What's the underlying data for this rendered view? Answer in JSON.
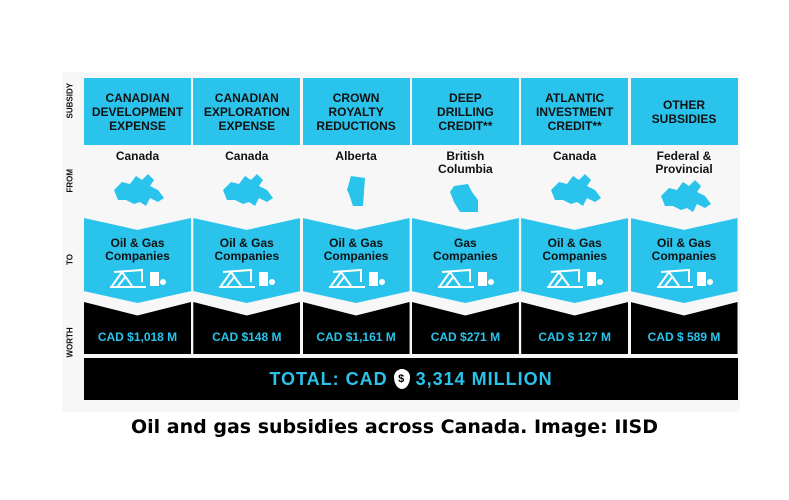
{
  "row_labels": [
    "SUBSIDY",
    "FROM",
    "TO",
    "WORTH"
  ],
  "columns": [
    {
      "subsidy": "CANADIAN\nDEVELOPMENT\nEXPENSE",
      "from": "Canada",
      "from_map": "canada-map",
      "to": "Oil & Gas\nCompanies",
      "worth": "CAD $1,018 M"
    },
    {
      "subsidy": "CANADIAN\nEXPLORATION\nEXPENSE",
      "from": "Canada",
      "from_map": "canada-map",
      "to": "Oil & Gas\nCompanies",
      "worth": "CAD $148 M"
    },
    {
      "subsidy": "CROWN\nROYALTY\nREDUCTIONS",
      "from": "Alberta",
      "from_map": "alberta-map",
      "to": "Oil & Gas\nCompanies",
      "worth": "CAD $1,161 M"
    },
    {
      "subsidy": "DEEP\nDRILLING\nCREDIT**",
      "from": "British\nColumbia",
      "from_map": "bc-map",
      "to": "Gas\nCompanies",
      "worth": "CAD $271 M"
    },
    {
      "subsidy": "ATLANTIC\nINVESTMENT\nCREDIT**",
      "from": "Canada",
      "from_map": "canada-map",
      "to": "Oil & Gas\nCompanies",
      "worth": "CAD $ 127 M"
    },
    {
      "subsidy": "OTHER\nSUBSIDIES",
      "from": "Federal &\nProvincial",
      "from_map": "canada-map",
      "to": "Oil & Gas\nCompanies",
      "worth": "CAD $ 589 M"
    }
  ],
  "total": {
    "prefix": "TOTAL: CAD",
    "symbol": "$",
    "amount": "3,314 MILLION"
  },
  "caption": "Oil and gas subsidies across Canada. Image: IISD",
  "colors": {
    "accent": "#29c3ec",
    "dark": "#000000"
  }
}
